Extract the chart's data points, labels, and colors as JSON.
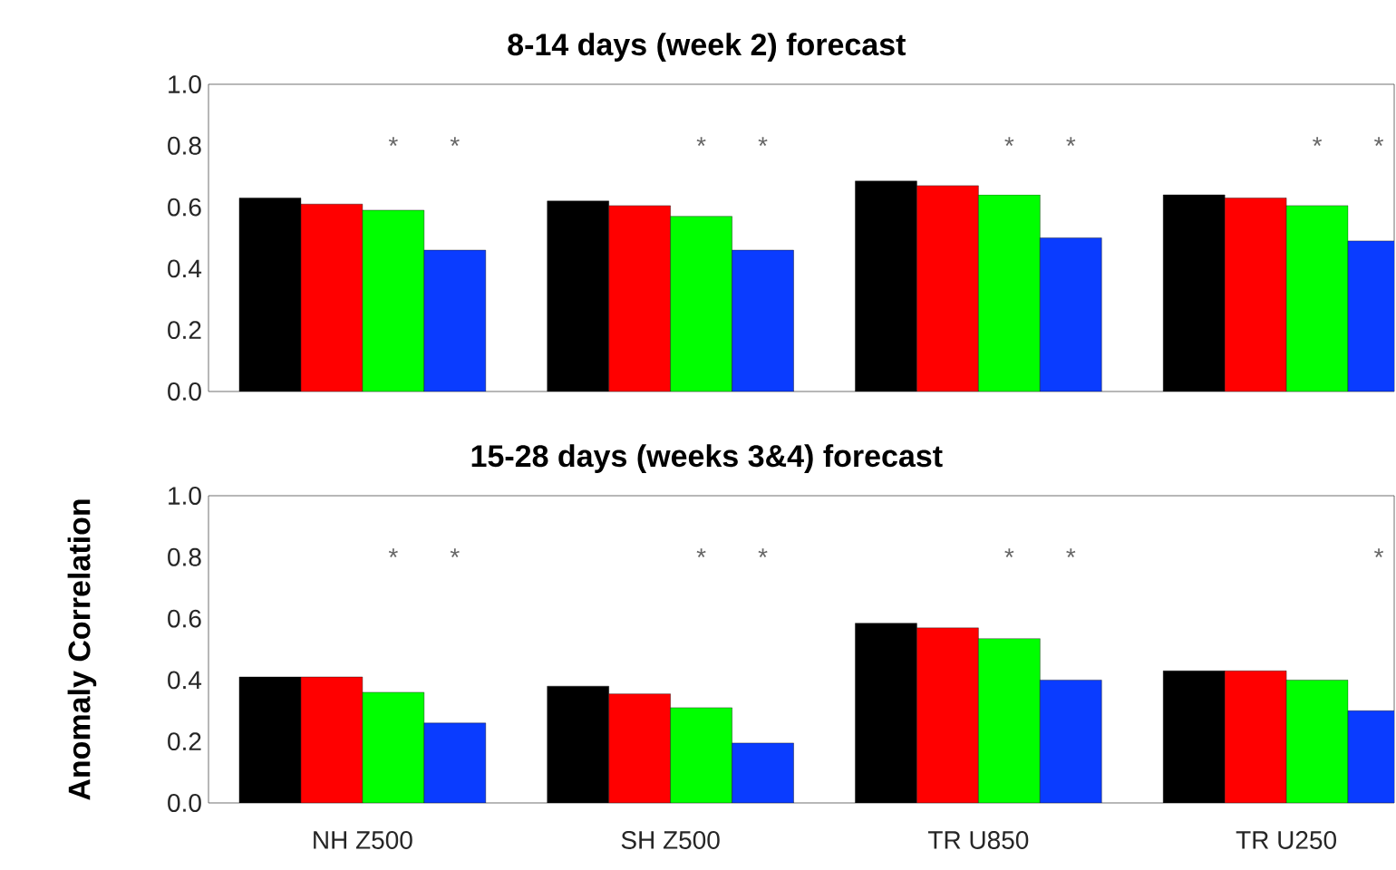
{
  "chart_data": [
    {
      "type": "bar",
      "title": "8-14 days (week 2) forecast",
      "tick_labels": "y",
      "categories": [
        null,
        null,
        null,
        null
      ],
      "series": [
        {
          "color": "#000000",
          "values": [
            0.63,
            0.62,
            0.685,
            0.64
          ]
        },
        {
          "color": "#ff0000",
          "values": [
            0.61,
            0.605,
            0.67,
            0.63
          ]
        },
        {
          "color": "#00ff00",
          "values": [
            0.59,
            0.57,
            0.64,
            0.605
          ]
        },
        {
          "color": "#0a3cff",
          "values": [
            0.46,
            0.46,
            0.5,
            0.49
          ]
        }
      ],
      "ylim": [
        0,
        1
      ],
      "yticks": [
        {
          "value": 0,
          "label": "0.0"
        },
        {
          "value": 0.2,
          "label": "0.2"
        },
        {
          "value": 0.4,
          "label": "0.4"
        },
        {
          "value": 0.6,
          "label": "0.6"
        },
        {
          "value": 0.8,
          "label": "0.8"
        },
        {
          "value": 1,
          "label": "1.0"
        }
      ],
      "annotations": [
        "*",
        "*",
        "*",
        "*",
        "*",
        "*",
        "*",
        "*"
      ]
    },
    {
      "type": "bar",
      "title": "15-28 days (weeks 3&4) forecast",
      "ylabel": "Anomaly Correlation",
      "categories": [
        "NH Z500",
        "SH Z500",
        "TR U850",
        "TR U250"
      ],
      "series": [
        {
          "color": "#000000",
          "values": [
            0.41,
            0.38,
            0.585,
            0.43
          ]
        },
        {
          "color": "#ff0000",
          "values": [
            0.41,
            0.355,
            0.57,
            0.43
          ]
        },
        {
          "color": "#00ff00",
          "values": [
            0.36,
            0.31,
            0.535,
            0.4
          ]
        },
        {
          "color": "#0a3cff",
          "values": [
            0.26,
            0.195,
            0.4,
            0.3
          ]
        }
      ],
      "ylim": [
        0,
        1
      ],
      "yticks": [
        {
          "value": 0,
          "label": "0.0"
        },
        {
          "value": 0.2,
          "label": "0.2"
        },
        {
          "value": 0.4,
          "label": "0.4"
        },
        {
          "value": 0.6,
          "label": "0.6"
        },
        {
          "value": 0.8,
          "label": "0.8"
        },
        {
          "value": 1,
          "label": "1.0"
        }
      ],
      "annotations": [
        "*",
        "*",
        "*",
        "*",
        "*",
        "*",
        "*"
      ]
    }
  ]
}
